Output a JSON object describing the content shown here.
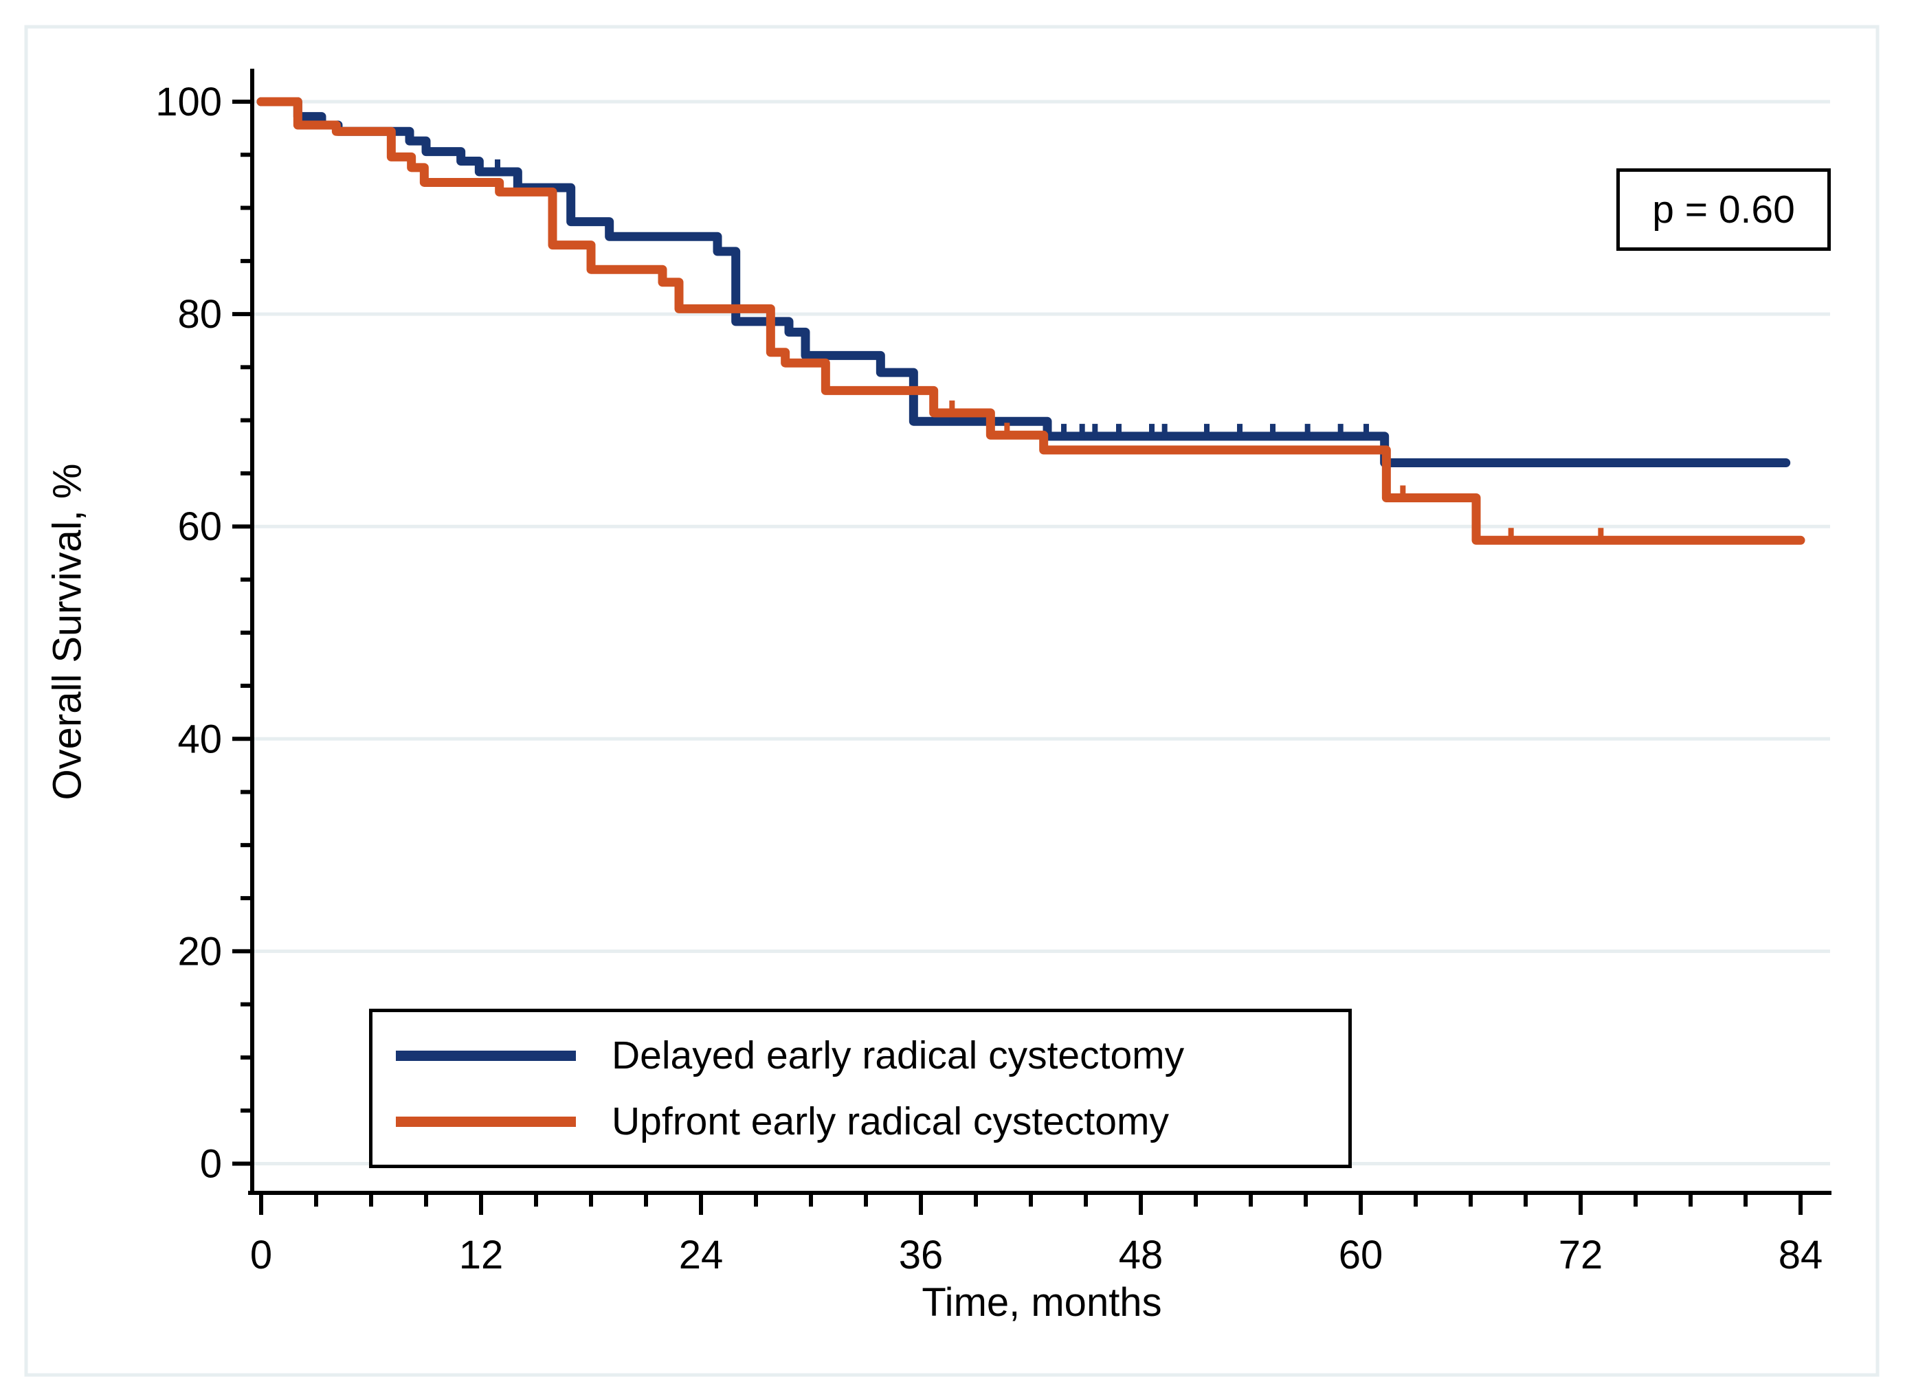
{
  "figure": {
    "background": "#ffffff",
    "frame_color": "#e7eef0",
    "axis_color": "#000000",
    "gridline_color": "#e7eef0"
  },
  "p_value_box": {
    "label": "p = 0.60"
  },
  "legend": {
    "items": [
      {
        "label": "Delayed early radical cystectomy",
        "color": "#173572"
      },
      {
        "label": "Upfront early radical cystectomy",
        "color": "#d05222"
      }
    ]
  },
  "chart_data": {
    "type": "line",
    "subtype": "kaplan-meier-step",
    "xlabel": "Time, months",
    "ylabel": "Overall Survival, %",
    "xlim": [
      0,
      84
    ],
    "ylim": [
      0,
      100
    ],
    "x_major_ticks": [
      0,
      12,
      24,
      36,
      48,
      60,
      72,
      84
    ],
    "x_minor_step": 3,
    "y_major_ticks": [
      0,
      20,
      40,
      60,
      80,
      100
    ],
    "y_minor_step": 5,
    "grid": "horizontal-majors",
    "legend_position": "bottom-left-inside",
    "annotation": "p = 0.60",
    "series": [
      {
        "name": "Delayed early radical cystectomy",
        "color": "#173572",
        "end_time": 83.2,
        "steps": [
          [
            0,
            100
          ],
          [
            2.0,
            98.6
          ],
          [
            3.3,
            97.8
          ],
          [
            4.2,
            97.2
          ],
          [
            8.1,
            96.3
          ],
          [
            9.0,
            95.3
          ],
          [
            10.9,
            94.4
          ],
          [
            11.9,
            93.4
          ],
          [
            14.0,
            91.9
          ],
          [
            16.9,
            88.7
          ],
          [
            19.0,
            87.3
          ],
          [
            24.9,
            85.9
          ],
          [
            25.9,
            79.3
          ],
          [
            28.8,
            78.3
          ],
          [
            29.7,
            76.1
          ],
          [
            33.8,
            74.5
          ],
          [
            35.6,
            69.9
          ],
          [
            42.9,
            68.5
          ],
          [
            61.3,
            66.0
          ]
        ],
        "censor_times": [
          12.9,
          37.4,
          43.8,
          44.8,
          45.5,
          46.8,
          48.6,
          49.3,
          51.6,
          53.4,
          55.2,
          57.1,
          58.9,
          60.3
        ]
      },
      {
        "name": "Upfront early radical cystectomy",
        "color": "#d05222",
        "end_time": 84.0,
        "steps": [
          [
            0,
            100
          ],
          [
            2.0,
            97.8
          ],
          [
            4.1,
            97.2
          ],
          [
            7.1,
            94.8
          ],
          [
            8.2,
            93.8
          ],
          [
            8.9,
            92.4
          ],
          [
            13.0,
            91.5
          ],
          [
            15.9,
            86.5
          ],
          [
            18.0,
            84.2
          ],
          [
            21.9,
            83.0
          ],
          [
            22.8,
            80.5
          ],
          [
            27.8,
            76.4
          ],
          [
            28.6,
            75.4
          ],
          [
            30.8,
            72.8
          ],
          [
            36.7,
            70.7
          ],
          [
            39.8,
            68.6
          ],
          [
            42.7,
            67.2
          ],
          [
            61.4,
            62.7
          ],
          [
            66.3,
            58.7
          ]
        ],
        "censor_times": [
          37.7,
          40.7,
          62.3,
          68.2,
          73.1
        ]
      }
    ]
  }
}
